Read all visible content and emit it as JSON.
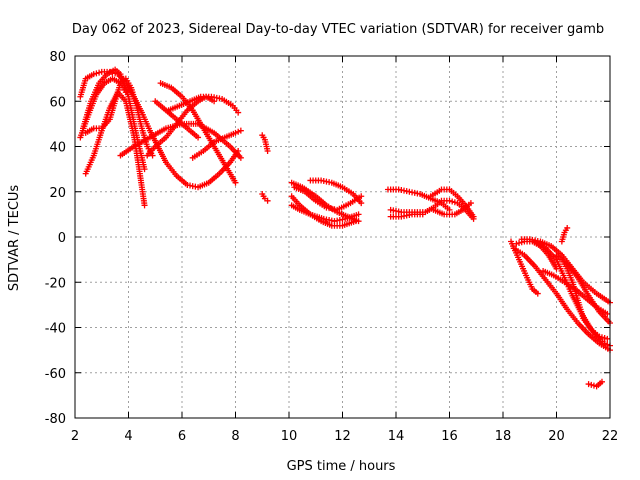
{
  "chart_data": {
    "type": "scatter",
    "title": "Day 062 of 2023, Sidereal Day-to-day VTEC variation (SDTVAR) for receiver gamb",
    "xlabel": "GPS time / hours",
    "ylabel": "SDTVAR / TECUs",
    "xlim": [
      2,
      22
    ],
    "ylim": [
      -80,
      80
    ],
    "xticks": [
      "2",
      "4",
      "6",
      "8",
      "10",
      "12",
      "14",
      "16",
      "18",
      "20",
      "22"
    ],
    "yticks": [
      "80",
      "60",
      "40",
      "20",
      "0",
      "-20",
      "-40",
      "-60",
      "-80"
    ],
    "grid": true,
    "marker": "+",
    "color": "#ff0000",
    "series": [
      {
        "x": [
          2.2,
          2.4,
          2.7,
          3.0,
          3.3,
          3.6,
          3.9,
          4.2,
          4.5,
          4.8,
          5.1,
          5.4,
          5.8,
          6.2,
          6.6,
          7.0,
          7.4,
          7.8,
          8.1
        ],
        "y": [
          62,
          70,
          72,
          73,
          73,
          72,
          68,
          62,
          55,
          47,
          40,
          33,
          27,
          23,
          22,
          24,
          28,
          33,
          38
        ]
      },
      {
        "x": [
          2.3,
          2.6,
          2.9,
          3.2,
          3.5,
          3.7,
          4.0,
          4.3,
          4.6
        ],
        "y": [
          48,
          60,
          68,
          72,
          74,
          72,
          62,
          45,
          30
        ]
      },
      {
        "x": [
          2.4,
          2.7,
          3.0,
          3.3,
          3.6,
          3.9,
          4.2,
          4.4,
          4.6
        ],
        "y": [
          28,
          36,
          47,
          57,
          64,
          60,
          45,
          30,
          14
        ]
      },
      {
        "x": [
          2.2,
          2.5,
          2.8,
          3.1,
          3.4,
          3.7,
          3.9
        ],
        "y": [
          44,
          54,
          63,
          68,
          70,
          68,
          64
        ]
      },
      {
        "x": [
          2.4,
          2.7,
          3.0,
          3.3,
          3.5,
          3.7,
          3.9,
          4.1,
          4.3,
          4.5,
          4.7,
          4.9
        ],
        "y": [
          46,
          48,
          48,
          52,
          60,
          68,
          70,
          66,
          58,
          48,
          40,
          36
        ]
      },
      {
        "x": [
          3.7,
          4.2,
          4.8,
          5.4,
          6.0,
          6.6,
          7.2,
          7.8,
          8.2
        ],
        "y": [
          36,
          40,
          44,
          48,
          50,
          50,
          46,
          40,
          35
        ]
      },
      {
        "x": [
          5.2,
          5.6,
          6.0,
          6.4,
          6.8,
          7.2,
          7.6,
          8.0
        ],
        "y": [
          68,
          66,
          62,
          56,
          48,
          40,
          32,
          24
        ]
      },
      {
        "x": [
          5.5,
          5.9,
          6.3,
          6.7,
          7.1,
          7.5,
          7.9,
          8.1
        ],
        "y": [
          56,
          58,
          60,
          62,
          62,
          61,
          58,
          55
        ]
      },
      {
        "x": [
          4.7,
          5.0,
          5.4,
          5.8,
          6.2,
          6.6,
          6.9,
          7.2
        ],
        "y": [
          36,
          40,
          44,
          50,
          56,
          60,
          62,
          60
        ]
      },
      {
        "x": [
          6.4,
          6.8,
          7.2,
          7.6,
          8.0,
          8.2
        ],
        "y": [
          35,
          38,
          42,
          44,
          46,
          47
        ]
      },
      {
        "x": [
          5.0,
          5.4,
          5.8,
          6.2,
          6.6
        ],
        "y": [
          60,
          56,
          52,
          48,
          44
        ]
      },
      {
        "x": [
          9.0,
          9.1,
          9.2
        ],
        "y": [
          45,
          43,
          38
        ]
      },
      {
        "x": [
          9.0,
          9.1,
          9.2
        ],
        "y": [
          19,
          17,
          16
        ]
      },
      {
        "x": [
          10.1,
          10.5,
          11.0,
          11.4,
          11.8,
          12.2,
          12.6
        ],
        "y": [
          24,
          22,
          18,
          14,
          11,
          9,
          7
        ]
      },
      {
        "x": [
          10.1,
          10.4,
          10.8,
          11.2,
          11.6,
          12.0,
          12.5
        ],
        "y": [
          18,
          14,
          10,
          7,
          5,
          5,
          7
        ]
      },
      {
        "x": [
          10.1,
          10.4,
          10.8,
          11.3,
          11.7,
          12.1,
          12.6
        ],
        "y": [
          14,
          12,
          10,
          8,
          7,
          8,
          10
        ]
      },
      {
        "x": [
          10.8,
          11.2,
          11.6,
          12.0,
          12.4,
          12.7
        ],
        "y": [
          25,
          25,
          24,
          22,
          19,
          15
        ]
      },
      {
        "x": [
          10.2,
          10.6,
          11.0,
          11.4,
          11.8,
          12.3,
          12.7
        ],
        "y": [
          22,
          20,
          16,
          13,
          12,
          15,
          18
        ]
      },
      {
        "x": [
          13.7,
          14.1,
          14.5,
          14.9,
          15.3,
          15.7,
          16.0
        ],
        "y": [
          21,
          21,
          20,
          19,
          17,
          15,
          12
        ]
      },
      {
        "x": [
          13.8,
          14.2,
          14.6,
          15.0
        ],
        "y": [
          12,
          11,
          11,
          11
        ]
      },
      {
        "x": [
          13.8,
          14.2,
          14.6,
          15.0
        ],
        "y": [
          9,
          9,
          10,
          10
        ]
      },
      {
        "x": [
          15.3,
          15.7,
          16.0,
          16.3,
          16.6,
          16.9
        ],
        "y": [
          18,
          21,
          21,
          18,
          14,
          9
        ]
      },
      {
        "x": [
          15.1,
          15.4,
          15.7,
          16.0,
          16.3,
          16.6,
          16.9
        ],
        "y": [
          11,
          13,
          16,
          16,
          15,
          12,
          8
        ]
      },
      {
        "x": [
          15.4,
          15.8,
          16.2,
          16.5,
          16.8
        ],
        "y": [
          12,
          10,
          10,
          12,
          15
        ]
      },
      {
        "x": [
          18.3,
          18.6,
          18.9,
          19.1,
          19.3
        ],
        "y": [
          -2,
          -10,
          -18,
          -23,
          -25
        ]
      },
      {
        "x": [
          18.5,
          18.8,
          19.1,
          19.4,
          19.7,
          20.0
        ],
        "y": [
          -3,
          -2,
          -2,
          -4,
          -8,
          -14
        ]
      },
      {
        "x": [
          18.7,
          19.0,
          19.4,
          19.8,
          20.2,
          20.6,
          21.0,
          21.5,
          22.0
        ],
        "y": [
          -1,
          -1,
          -2,
          -4,
          -8,
          -14,
          -20,
          -25,
          -29
        ]
      },
      {
        "x": [
          18.4,
          18.8,
          19.2,
          19.6,
          20.0,
          20.4,
          20.8,
          21.2,
          21.6,
          22.0
        ],
        "y": [
          -5,
          -8,
          -13,
          -19,
          -25,
          -32,
          -38,
          -43,
          -47,
          -50
        ]
      },
      {
        "x": [
          19.2,
          19.6,
          20.0,
          20.3,
          20.6,
          20.9,
          21.2,
          21.5,
          21.8,
          22.0
        ],
        "y": [
          -2,
          -5,
          -10,
          -18,
          -26,
          -33,
          -39,
          -44,
          -47,
          -48
        ]
      },
      {
        "x": [
          20.0,
          20.2,
          20.4,
          20.6,
          20.8,
          21.0,
          21.3,
          21.6,
          21.9
        ],
        "y": [
          -8,
          -10,
          -14,
          -20,
          -28,
          -36,
          -41,
          -44,
          -45
        ]
      },
      {
        "x": [
          20.2,
          20.3,
          20.4
        ],
        "y": [
          -2,
          2,
          4
        ]
      },
      {
        "x": [
          20.4,
          20.8,
          21.2,
          21.6,
          22.0
        ],
        "y": [
          -12,
          -18,
          -26,
          -33,
          -38
        ]
      },
      {
        "x": [
          19.5,
          19.9,
          20.3,
          20.7,
          21.1,
          21.5,
          21.9
        ],
        "y": [
          -15,
          -17,
          -20,
          -23,
          -27,
          -31,
          -34
        ]
      },
      {
        "x": [
          21.2,
          21.5,
          21.7
        ],
        "y": [
          -65,
          -66,
          -64
        ]
      }
    ]
  }
}
